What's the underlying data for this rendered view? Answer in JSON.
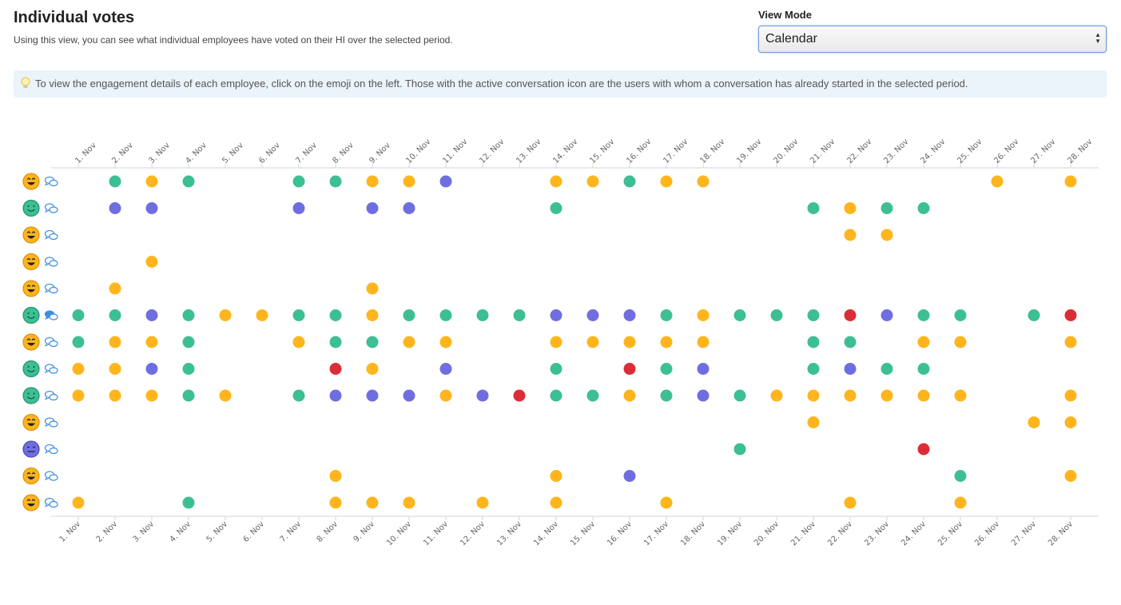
{
  "header": {
    "title": "Individual votes",
    "subtitle": "Using this view, you can see what individual employees have voted on their HI over the selected period."
  },
  "view_mode": {
    "label": "View Mode",
    "selected": "Calendar"
  },
  "info_text": "To view the engagement details of each employee, click on the emoji on the left. Those with the active conversation icon are the users with whom a conversation has already started in the selected period.",
  "colors": {
    "green": "#3dbf94",
    "yellow": "#ffb51b",
    "purple": "#6f6ee0",
    "red": "#dc2d37",
    "link_blue": "#3f8ee0",
    "axis": "#d5d5d5"
  },
  "chart_data": {
    "type": "scatter",
    "title": "Individual votes",
    "dates": [
      "1. Nov",
      "2. Nov",
      "3. Nov",
      "4. Nov",
      "5. Nov",
      "6. Nov",
      "7. Nov",
      "8. Nov",
      "9. Nov",
      "10. Nov",
      "11. Nov",
      "12. Nov",
      "13. Nov",
      "14. Nov",
      "15. Nov",
      "16. Nov",
      "17. Nov",
      "18. Nov",
      "19. Nov",
      "20. Nov",
      "21. Nov",
      "22. Nov",
      "23. Nov",
      "24. Nov",
      "25. Nov",
      "26. Nov",
      "27. Nov",
      "28. Nov"
    ],
    "legend": {
      "G": "green",
      "Y": "yellow",
      "P": "purple",
      "R": "red"
    },
    "employees": [
      {
        "emoji": "laughing",
        "conversation": false,
        "votes": {
          "2": "G",
          "3": "Y",
          "4": "G",
          "7": "G",
          "8": "G",
          "9": "Y",
          "10": "Y",
          "11": "P",
          "14": "Y",
          "15": "Y",
          "16": "G",
          "17": "Y",
          "18": "Y",
          "26": "Y",
          "28": "Y"
        }
      },
      {
        "emoji": "smiling",
        "conversation": false,
        "votes": {
          "2": "P",
          "3": "P",
          "7": "P",
          "9": "P",
          "10": "P",
          "14": "G",
          "21": "G",
          "22": "Y",
          "23": "G",
          "24": "G"
        }
      },
      {
        "emoji": "laughing",
        "conversation": false,
        "votes": {
          "22": "Y",
          "23": "Y"
        }
      },
      {
        "emoji": "laughing",
        "conversation": false,
        "votes": {
          "3": "Y"
        }
      },
      {
        "emoji": "laughing",
        "conversation": false,
        "votes": {
          "2": "Y",
          "9": "Y"
        }
      },
      {
        "emoji": "smiling",
        "conversation": true,
        "votes": {
          "1": "G",
          "2": "G",
          "3": "P",
          "4": "G",
          "5": "Y",
          "6": "Y",
          "7": "G",
          "8": "G",
          "9": "Y",
          "10": "G",
          "11": "G",
          "12": "G",
          "13": "G",
          "14": "P",
          "15": "P",
          "16": "P",
          "17": "G",
          "18": "Y",
          "19": "G",
          "20": "G",
          "21": "G",
          "22": "R",
          "23": "P",
          "24": "G",
          "25": "G",
          "27": "G",
          "28": "R"
        }
      },
      {
        "emoji": "laughing",
        "conversation": false,
        "votes": {
          "1": "G",
          "2": "Y",
          "3": "Y",
          "4": "G",
          "7": "Y",
          "8": "G",
          "9": "G",
          "10": "Y",
          "11": "Y",
          "14": "Y",
          "15": "Y",
          "16": "Y",
          "17": "Y",
          "18": "Y",
          "21": "G",
          "22": "G",
          "24": "Y",
          "25": "Y",
          "28": "Y"
        }
      },
      {
        "emoji": "smiling",
        "conversation": false,
        "votes": {
          "1": "Y",
          "2": "Y",
          "3": "P",
          "4": "G",
          "8": "R",
          "9": "Y",
          "11": "P",
          "14": "G",
          "16": "R",
          "17": "G",
          "18": "P",
          "21": "G",
          "22": "P",
          "23": "G",
          "24": "G"
        }
      },
      {
        "emoji": "smiling",
        "conversation": false,
        "votes": {
          "1": "Y",
          "2": "Y",
          "3": "Y",
          "4": "G",
          "5": "Y",
          "7": "G",
          "8": "P",
          "9": "P",
          "10": "P",
          "11": "Y",
          "12": "P",
          "13": "R",
          "14": "G",
          "15": "G",
          "16": "Y",
          "17": "G",
          "18": "P",
          "19": "G",
          "20": "Y",
          "21": "Y",
          "22": "Y",
          "23": "Y",
          "24": "Y",
          "25": "Y",
          "28": "Y"
        }
      },
      {
        "emoji": "laughing",
        "conversation": false,
        "votes": {
          "21": "Y",
          "27": "Y",
          "28": "Y"
        }
      },
      {
        "emoji": "neutral",
        "conversation": false,
        "votes": {
          "19": "G",
          "24": "R"
        }
      },
      {
        "emoji": "laughing",
        "conversation": false,
        "votes": {
          "8": "Y",
          "14": "Y",
          "16": "P",
          "25": "G",
          "28": "Y"
        }
      },
      {
        "emoji": "laughing",
        "conversation": false,
        "votes": {
          "1": "Y",
          "4": "G",
          "8": "Y",
          "9": "Y",
          "10": "Y",
          "12": "Y",
          "14": "Y",
          "17": "Y",
          "22": "Y",
          "25": "Y"
        }
      }
    ]
  }
}
